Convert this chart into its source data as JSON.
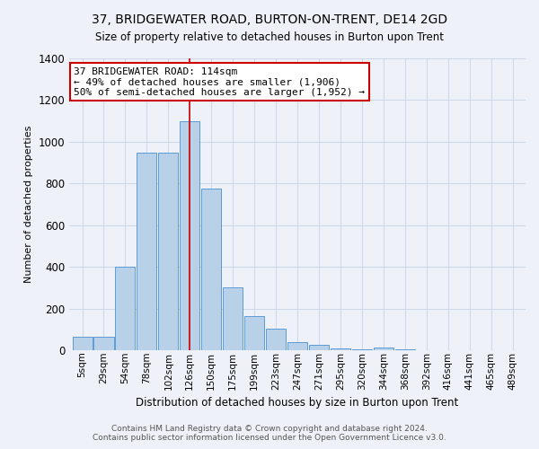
{
  "title": "37, BRIDGEWATER ROAD, BURTON-ON-TRENT, DE14 2GD",
  "subtitle": "Size of property relative to detached houses in Burton upon Trent",
  "xlabel": "Distribution of detached houses by size in Burton upon Trent",
  "ylabel": "Number of detached properties",
  "footer_line1": "Contains HM Land Registry data © Crown copyright and database right 2024.",
  "footer_line2": "Contains public sector information licensed under the Open Government Licence v3.0.",
  "categories": [
    "5sqm",
    "29sqm",
    "54sqm",
    "78sqm",
    "102sqm",
    "126sqm",
    "150sqm",
    "175sqm",
    "199sqm",
    "223sqm",
    "247sqm",
    "271sqm",
    "295sqm",
    "320sqm",
    "344sqm",
    "368sqm",
    "392sqm",
    "416sqm",
    "441sqm",
    "465sqm",
    "489sqm"
  ],
  "bar_heights": [
    65,
    65,
    400,
    950,
    950,
    1100,
    775,
    300,
    165,
    105,
    40,
    25,
    10,
    5,
    15,
    5,
    2,
    1,
    0,
    0,
    0
  ],
  "bar_color": "#b8d0e8",
  "bar_edge_color": "#5b9bd5",
  "highlight_bin_index": 5,
  "vline_color": "#cc0000",
  "annotation_text": "37 BRIDGEWATER ROAD: 114sqm\n← 49% of detached houses are smaller (1,906)\n50% of semi-detached houses are larger (1,952) →",
  "annotation_box_color": "#ffffff",
  "annotation_box_edge_color": "#cc0000",
  "ylim": [
    0,
    1400
  ],
  "yticks": [
    0,
    200,
    400,
    600,
    800,
    1000,
    1200,
    1400
  ],
  "grid_color": "#d0d8e8",
  "background_color": "#eef2f8",
  "figsize": [
    6.0,
    5.0
  ],
  "dpi": 100,
  "title_fontsize": 10,
  "subtitle_fontsize": 8.5,
  "xlabel_fontsize": 8.5,
  "ylabel_fontsize": 8,
  "tick_fontsize": 7.5,
  "ytick_fontsize": 8.5,
  "footer_fontsize": 6.5,
  "annotation_fontsize": 8
}
